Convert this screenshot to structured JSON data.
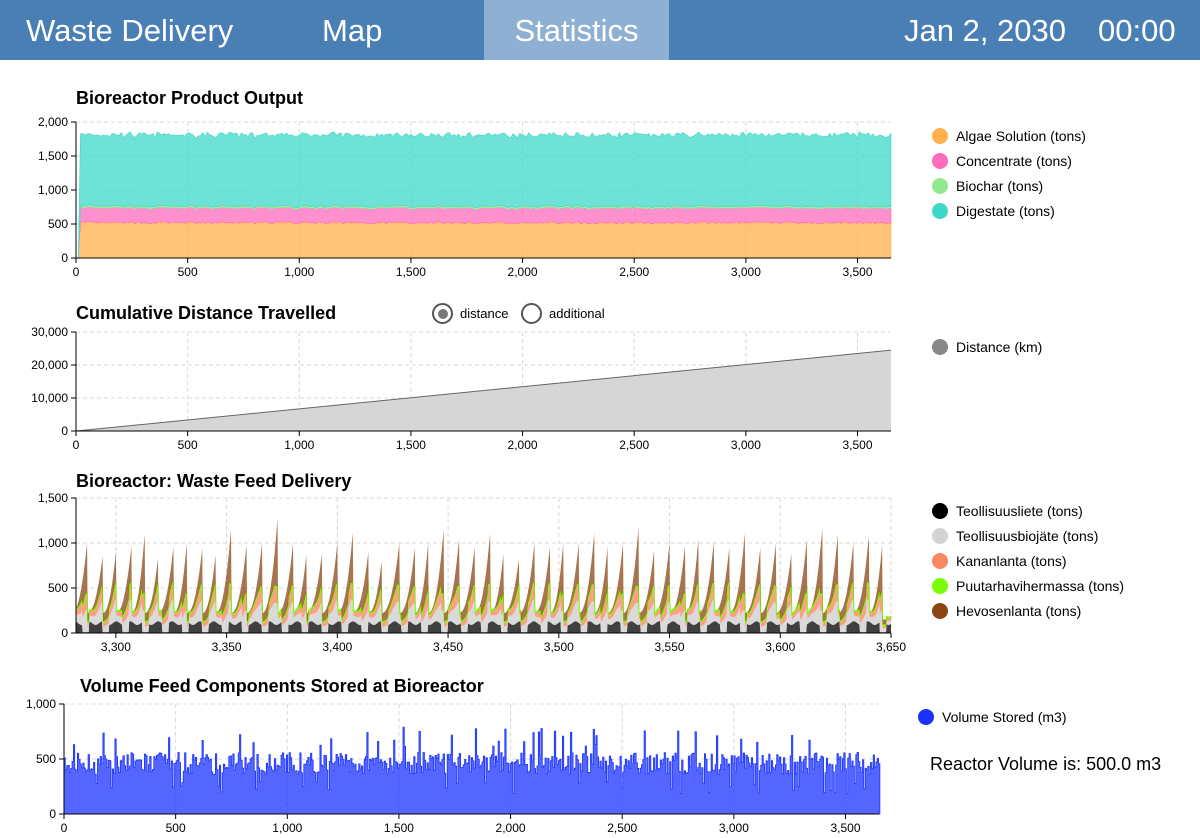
{
  "nav": {
    "title": "Waste Delivery",
    "tabs": [
      {
        "label": "Map",
        "active": false
      },
      {
        "label": "Statistics",
        "active": true
      }
    ],
    "date": "Jan 2, 2030",
    "time": "00:00"
  },
  "colors": {
    "nav_bg": "#4a7fb5",
    "nav_active": "#8eb1d3",
    "algae": "#ffb04a",
    "concentrate": "#ff6bbd",
    "biochar": "#92e88f",
    "digestate": "#3dd8c8",
    "distance": "#888888",
    "teollisuusliete": "#000000",
    "teollisuusbiojate": "#d3d3d3",
    "kananlanta": "#fa8865",
    "puutarhavihermassa": "#7cfc00",
    "hevosenlanta": "#8b4513",
    "volume": "#1b33ff"
  },
  "chart_data": [
    {
      "id": "product_output",
      "type": "area",
      "stacked": true,
      "title": "Bioreactor  Product Output",
      "x_ticks": [
        "0",
        "500",
        "1,000",
        "1,500",
        "2,000",
        "2,500",
        "3,000",
        "3,500"
      ],
      "y_ticks": [
        "0",
        "500",
        "1,000",
        "1,500",
        "2,000"
      ],
      "xlim": [
        0,
        3650
      ],
      "ylim": [
        0,
        2000
      ],
      "grid": true,
      "legend_position": "right",
      "series": [
        {
          "name": "Algae Solution (tons)",
          "mean": 520
        },
        {
          "name": "Concentrate (tons)",
          "mean": 215
        },
        {
          "name": "Biochar (tons)",
          "mean": 25
        },
        {
          "name": "Digestate (tons)",
          "mean": 1050
        }
      ]
    },
    {
      "id": "distance",
      "type": "area",
      "title": "Cumulative Distance Travelled",
      "x_ticks": [
        "0",
        "500",
        "1,000",
        "1,500",
        "2,000",
        "2,500",
        "3,000",
        "3,500"
      ],
      "y_ticks": [
        "0",
        "10,000",
        "20,000",
        "30,000"
      ],
      "xlim": [
        0,
        3650
      ],
      "ylim": [
        0,
        30000
      ],
      "grid": true,
      "legend_position": "right",
      "series": [
        {
          "name": "Distance (km)",
          "x": [
            0,
            3650
          ],
          "y": [
            0,
            24500
          ]
        }
      ]
    },
    {
      "id": "waste_feed",
      "type": "area",
      "stacked": true,
      "title": "Bioreactor:  Waste Feed  Delivery",
      "x_ticks": [
        "3,300",
        "3,350",
        "3,400",
        "3,450",
        "3,500",
        "3,550",
        "3,600",
        "3,650"
      ],
      "y_ticks": [
        "0",
        "500",
        "1,000",
        "1,500"
      ],
      "xlim": [
        3282,
        3650
      ],
      "ylim": [
        0,
        1500
      ],
      "grid": true,
      "legend_position": "right",
      "series": [
        {
          "name": "Teollisuusliete (tons)"
        },
        {
          "name": "Teollisuusbiojäte (tons)"
        },
        {
          "name": "Kananlanta (tons)"
        },
        {
          "name": "Puutarhavihermassa (tons)"
        },
        {
          "name": "Hevosenlanta (tons)"
        }
      ],
      "peaks": [
        {
          "x": 3287,
          "y": 1000
        },
        {
          "x": 3294,
          "y": 850
        },
        {
          "x": 3300,
          "y": 900
        },
        {
          "x": 3307,
          "y": 960
        },
        {
          "x": 3313,
          "y": 1100
        },
        {
          "x": 3319,
          "y": 830
        },
        {
          "x": 3326,
          "y": 960
        },
        {
          "x": 3332,
          "y": 1000
        },
        {
          "x": 3339,
          "y": 940
        },
        {
          "x": 3345,
          "y": 870
        },
        {
          "x": 3352,
          "y": 1150
        },
        {
          "x": 3359,
          "y": 980
        },
        {
          "x": 3366,
          "y": 1000
        },
        {
          "x": 3373,
          "y": 1280
        },
        {
          "x": 3380,
          "y": 1000
        },
        {
          "x": 3386,
          "y": 870
        },
        {
          "x": 3393,
          "y": 880
        },
        {
          "x": 3400,
          "y": 1000
        },
        {
          "x": 3407,
          "y": 1120
        },
        {
          "x": 3414,
          "y": 900
        },
        {
          "x": 3420,
          "y": 800
        },
        {
          "x": 3428,
          "y": 1000
        },
        {
          "x": 3435,
          "y": 950
        },
        {
          "x": 3441,
          "y": 1000
        },
        {
          "x": 3448,
          "y": 1150
        },
        {
          "x": 3455,
          "y": 1050
        },
        {
          "x": 3462,
          "y": 960
        },
        {
          "x": 3469,
          "y": 1110
        },
        {
          "x": 3475,
          "y": 880
        },
        {
          "x": 3482,
          "y": 820
        },
        {
          "x": 3489,
          "y": 1000
        },
        {
          "x": 3496,
          "y": 960
        },
        {
          "x": 3502,
          "y": 1000
        },
        {
          "x": 3509,
          "y": 1000
        },
        {
          "x": 3516,
          "y": 1110
        },
        {
          "x": 3522,
          "y": 960
        },
        {
          "x": 3529,
          "y": 1000
        },
        {
          "x": 3536,
          "y": 1180
        },
        {
          "x": 3543,
          "y": 920
        },
        {
          "x": 3550,
          "y": 1000
        },
        {
          "x": 3557,
          "y": 970
        },
        {
          "x": 3563,
          "y": 1050
        },
        {
          "x": 3570,
          "y": 1020
        },
        {
          "x": 3577,
          "y": 950
        },
        {
          "x": 3584,
          "y": 1110
        },
        {
          "x": 3591,
          "y": 950
        },
        {
          "x": 3598,
          "y": 1000
        },
        {
          "x": 3605,
          "y": 880
        },
        {
          "x": 3612,
          "y": 1040
        },
        {
          "x": 3619,
          "y": 1170
        },
        {
          "x": 3626,
          "y": 1100
        },
        {
          "x": 3633,
          "y": 1000
        },
        {
          "x": 3640,
          "y": 1080
        },
        {
          "x": 3646,
          "y": 980
        }
      ]
    },
    {
      "id": "volume",
      "type": "area",
      "title": "Volume Feed Components Stored at Bioreactor",
      "x_ticks": [
        "0",
        "500",
        "1,000",
        "1,500",
        "2,000",
        "2,500",
        "3,000",
        "3,500"
      ],
      "y_ticks": [
        "0",
        "500",
        "1,000"
      ],
      "xlim": [
        0,
        3650
      ],
      "ylim": [
        0,
        1000
      ],
      "grid": true,
      "legend_position": "right",
      "series": [
        {
          "name": "Volume Stored (m3)",
          "mean": 460
        }
      ]
    }
  ],
  "distance_toggle": {
    "options": [
      {
        "label": "distance",
        "checked": true
      },
      {
        "label": "additional",
        "checked": false
      }
    ]
  },
  "reactor_volume": "Reactor Volume is: 500.0 m3"
}
